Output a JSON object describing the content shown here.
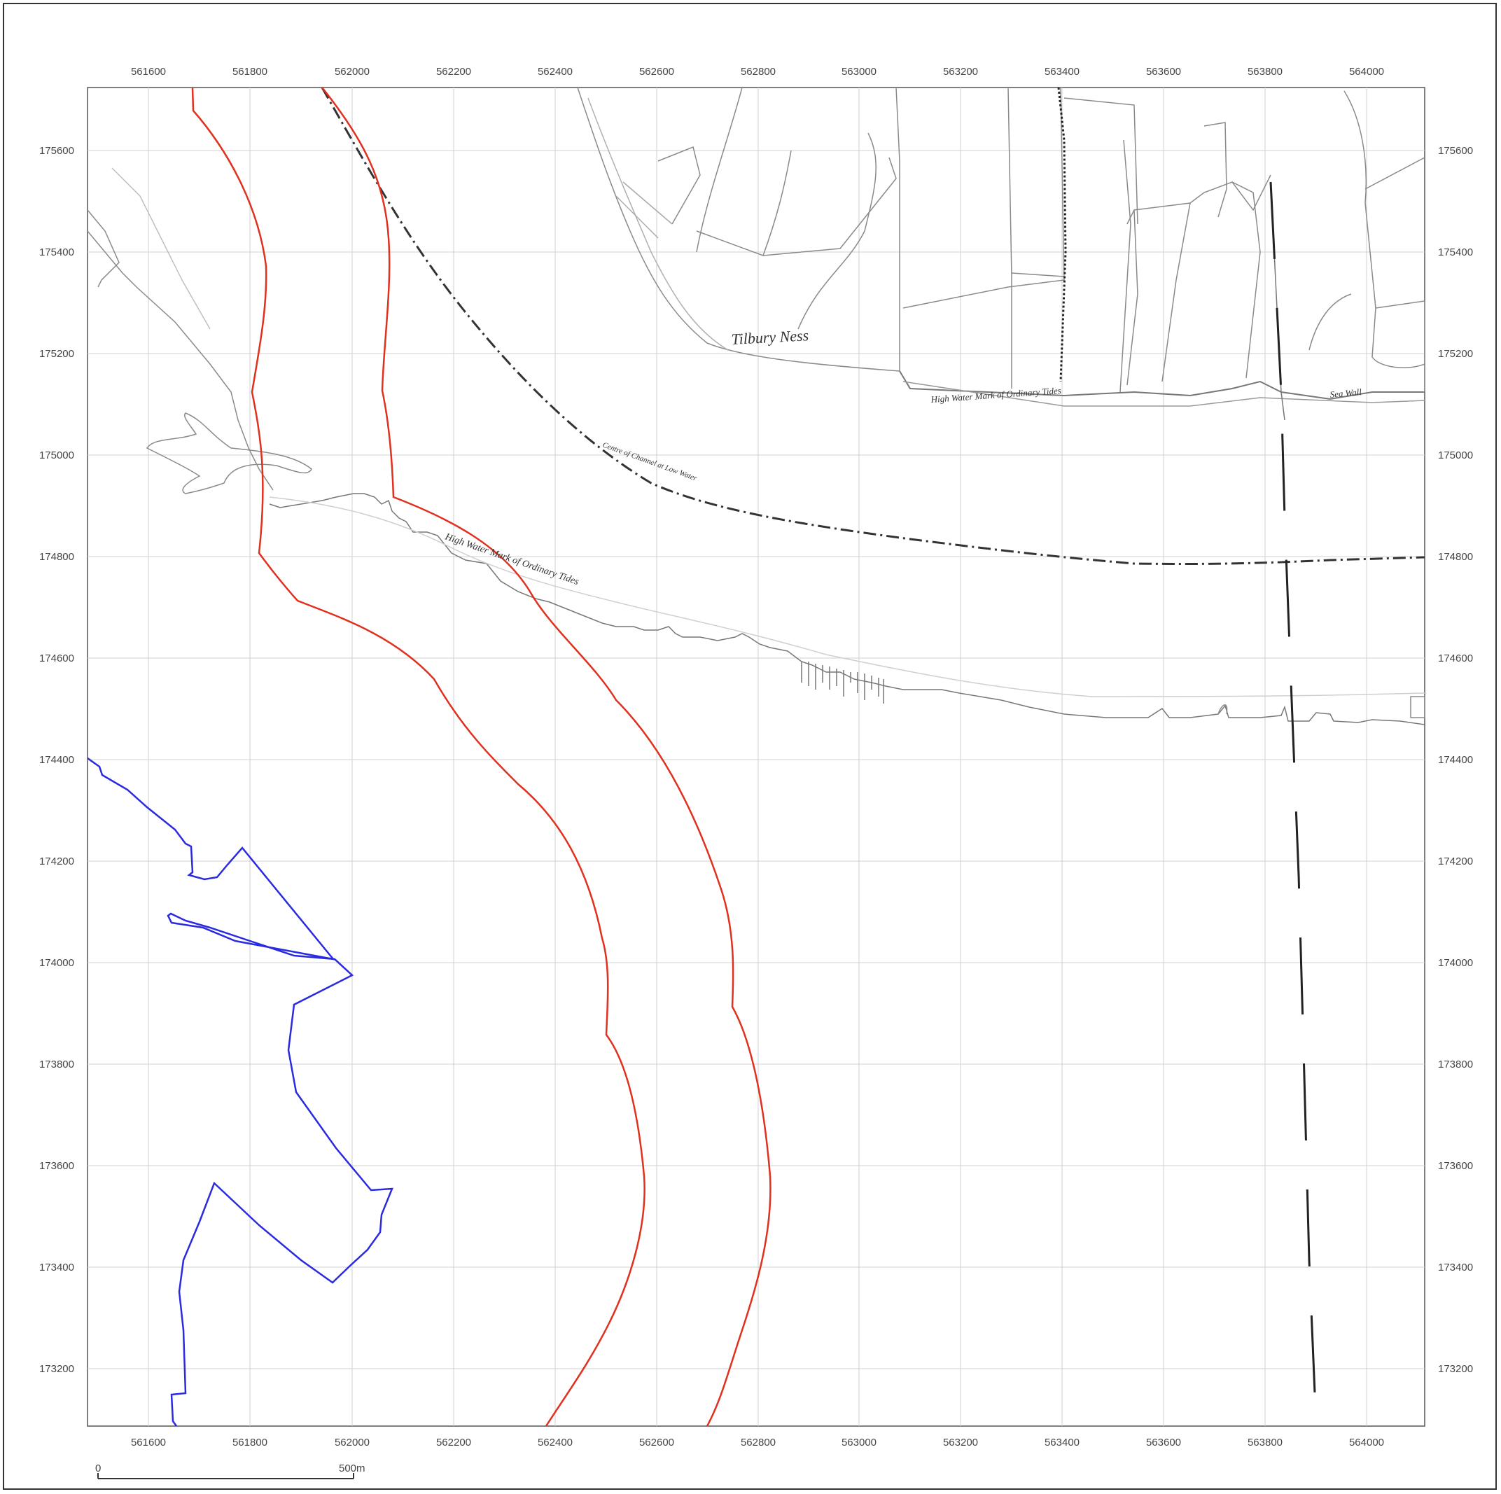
{
  "map": {
    "x_ticks": [
      "561600",
      "561800",
      "562000",
      "562200",
      "562400",
      "562600",
      "562800",
      "563000",
      "563200",
      "563400",
      "563600",
      "563800",
      "564000"
    ],
    "y_ticks": [
      "175600",
      "175400",
      "175200",
      "175000",
      "174800",
      "174600",
      "174400",
      "174200",
      "174000",
      "173800",
      "173600",
      "173400",
      "173200"
    ],
    "labels": {
      "place": "Tilbury Ness",
      "channel": "Centre of Channel at Low Water",
      "hwm_north": "High Water Mark of Ordinary Tides",
      "hwm_south": "High Water Mark of Ordinary Tides",
      "sea_wall": "Sea Wall"
    },
    "scale_bar": {
      "start": "0",
      "end": "500m"
    },
    "colors": {
      "red_boundary": "#e0301e",
      "blue_boundary": "#2a2ae0",
      "grid": "#d0d0d0"
    }
  }
}
